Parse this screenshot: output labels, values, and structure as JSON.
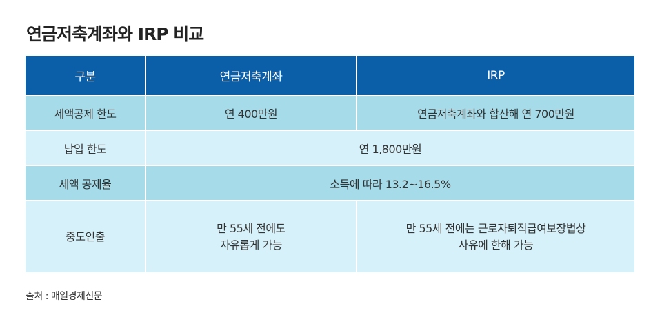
{
  "title": "연금저축계좌와 IRP 비교",
  "table": {
    "headers": [
      "구분",
      "연금저축계좌",
      "IRP"
    ],
    "rows": [
      {
        "label": "세액공제 한도",
        "pension_savings": "연 400만원",
        "irp": "연금저축계좌와 합산해 연 700만원"
      },
      {
        "label": "납입 한도",
        "merged": "연 1,800만원"
      },
      {
        "label": "세액 공제율",
        "merged": "소득에 따라 13.2~16.5%"
      },
      {
        "label": "중도인출",
        "pension_savings_line1": "만 55세 전에도",
        "pension_savings_line2": "자유롭게 가능",
        "irp_line1": "만 55세 전에는 근로자퇴직급여보장법상",
        "irp_line2": "사유에 한해 가능"
      }
    ]
  },
  "source": "출처 : 매일경제신문",
  "colors": {
    "header_bg": "#0b5ea8",
    "row_dark": "#a6dcea",
    "row_light": "#d6f1f9"
  }
}
